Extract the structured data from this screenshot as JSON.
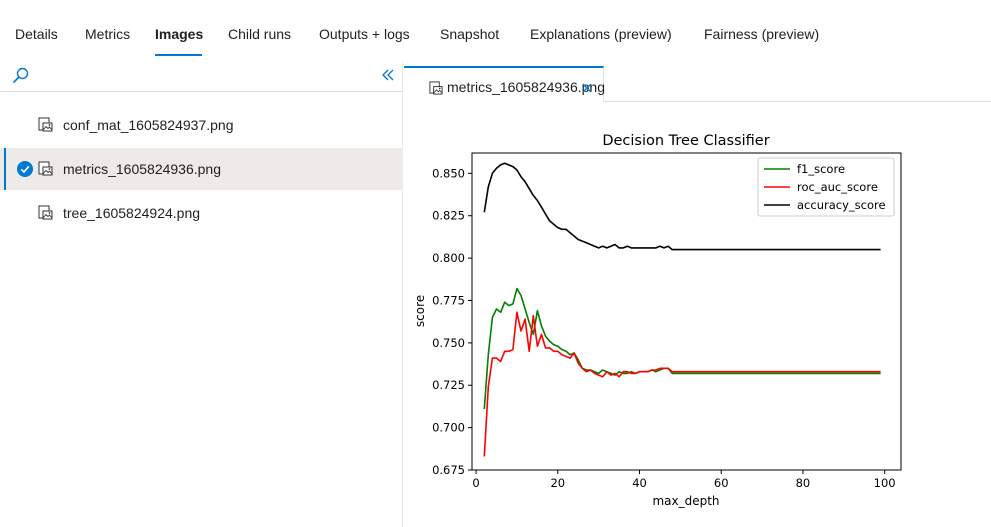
{
  "top_tabs": [
    "Details",
    "Metrics",
    "Images",
    "Child runs",
    "Outputs + logs",
    "Snapshot",
    "Explanations (preview)",
    "Fairness (preview)"
  ],
  "active_top_tab": "Images",
  "files": [
    {
      "name": "conf_mat_1605824937.png",
      "selected": false
    },
    {
      "name": "metrics_1605824936.png",
      "selected": true
    },
    {
      "name": "tree_1605824924.png",
      "selected": false
    }
  ],
  "open_tab": {
    "label": "metrics_1605824936.png"
  },
  "colors": {
    "accent": "#0078d4",
    "selected_bg": "#edebe9"
  },
  "chart_data": {
    "type": "line",
    "title": "Decision Tree Classifier",
    "xlabel": "max_depth",
    "ylabel": "score",
    "xlim": [
      -1,
      104
    ],
    "ylim": [
      0.675,
      0.862
    ],
    "xticks": [
      0,
      20,
      40,
      60,
      80,
      100
    ],
    "yticks": [
      0.675,
      0.7,
      0.725,
      0.75,
      0.775,
      0.8,
      0.825,
      0.85
    ],
    "grid": false,
    "legend_position": "upper right",
    "series": [
      {
        "name": "f1_score",
        "color": "#008000",
        "x": [
          2,
          3,
          4,
          5,
          6,
          7,
          8,
          9,
          10,
          11,
          12,
          13,
          14,
          15,
          16,
          17,
          18,
          19,
          20,
          21,
          22,
          23,
          24,
          25,
          26,
          27,
          28,
          29,
          30,
          31,
          32,
          33,
          34,
          35,
          36,
          37,
          38,
          39,
          40,
          41,
          42,
          43,
          44,
          45,
          46,
          47,
          48,
          99
        ],
        "y": [
          0.711,
          0.743,
          0.765,
          0.77,
          0.768,
          0.774,
          0.772,
          0.773,
          0.782,
          0.778,
          0.77,
          0.762,
          0.755,
          0.769,
          0.76,
          0.754,
          0.751,
          0.749,
          0.748,
          0.746,
          0.745,
          0.743,
          0.744,
          0.74,
          0.735,
          0.734,
          0.734,
          0.733,
          0.732,
          0.734,
          0.733,
          0.732,
          0.731,
          0.733,
          0.732,
          0.732,
          0.733,
          0.732,
          0.733,
          0.733,
          0.733,
          0.734,
          0.733,
          0.734,
          0.735,
          0.735,
          0.732,
          0.732
        ]
      },
      {
        "name": "roc_auc_score",
        "color": "#ff0000",
        "x": [
          2,
          3,
          4,
          5,
          6,
          7,
          8,
          9,
          10,
          11,
          12,
          13,
          14,
          15,
          16,
          17,
          18,
          19,
          20,
          21,
          22,
          23,
          24,
          25,
          26,
          27,
          28,
          29,
          30,
          31,
          32,
          33,
          34,
          35,
          36,
          37,
          38,
          39,
          40,
          41,
          42,
          43,
          44,
          45,
          46,
          47,
          48,
          99
        ],
        "y": [
          0.683,
          0.724,
          0.741,
          0.741,
          0.739,
          0.745,
          0.745,
          0.746,
          0.768,
          0.757,
          0.764,
          0.745,
          0.766,
          0.748,
          0.755,
          0.747,
          0.747,
          0.745,
          0.745,
          0.743,
          0.742,
          0.741,
          0.744,
          0.738,
          0.735,
          0.733,
          0.734,
          0.732,
          0.731,
          0.73,
          0.733,
          0.731,
          0.732,
          0.73,
          0.733,
          0.733,
          0.732,
          0.732,
          0.733,
          0.733,
          0.733,
          0.734,
          0.734,
          0.735,
          0.735,
          0.735,
          0.733,
          0.733
        ]
      },
      {
        "name": "accuracy_score",
        "color": "#000000",
        "x": [
          2,
          3,
          4,
          5,
          6,
          7,
          8,
          9,
          10,
          11,
          12,
          13,
          14,
          15,
          16,
          17,
          18,
          19,
          20,
          21,
          22,
          23,
          24,
          25,
          26,
          27,
          28,
          29,
          30,
          31,
          32,
          33,
          34,
          35,
          36,
          37,
          38,
          39,
          40,
          41,
          42,
          43,
          44,
          45,
          46,
          47,
          48,
          99
        ],
        "y": [
          0.827,
          0.842,
          0.85,
          0.853,
          0.855,
          0.856,
          0.855,
          0.854,
          0.852,
          0.848,
          0.845,
          0.841,
          0.837,
          0.834,
          0.83,
          0.826,
          0.822,
          0.82,
          0.818,
          0.817,
          0.817,
          0.815,
          0.813,
          0.811,
          0.81,
          0.809,
          0.808,
          0.807,
          0.806,
          0.807,
          0.806,
          0.807,
          0.808,
          0.806,
          0.806,
          0.807,
          0.806,
          0.806,
          0.806,
          0.806,
          0.806,
          0.806,
          0.806,
          0.807,
          0.806,
          0.807,
          0.805,
          0.805
        ]
      }
    ]
  }
}
